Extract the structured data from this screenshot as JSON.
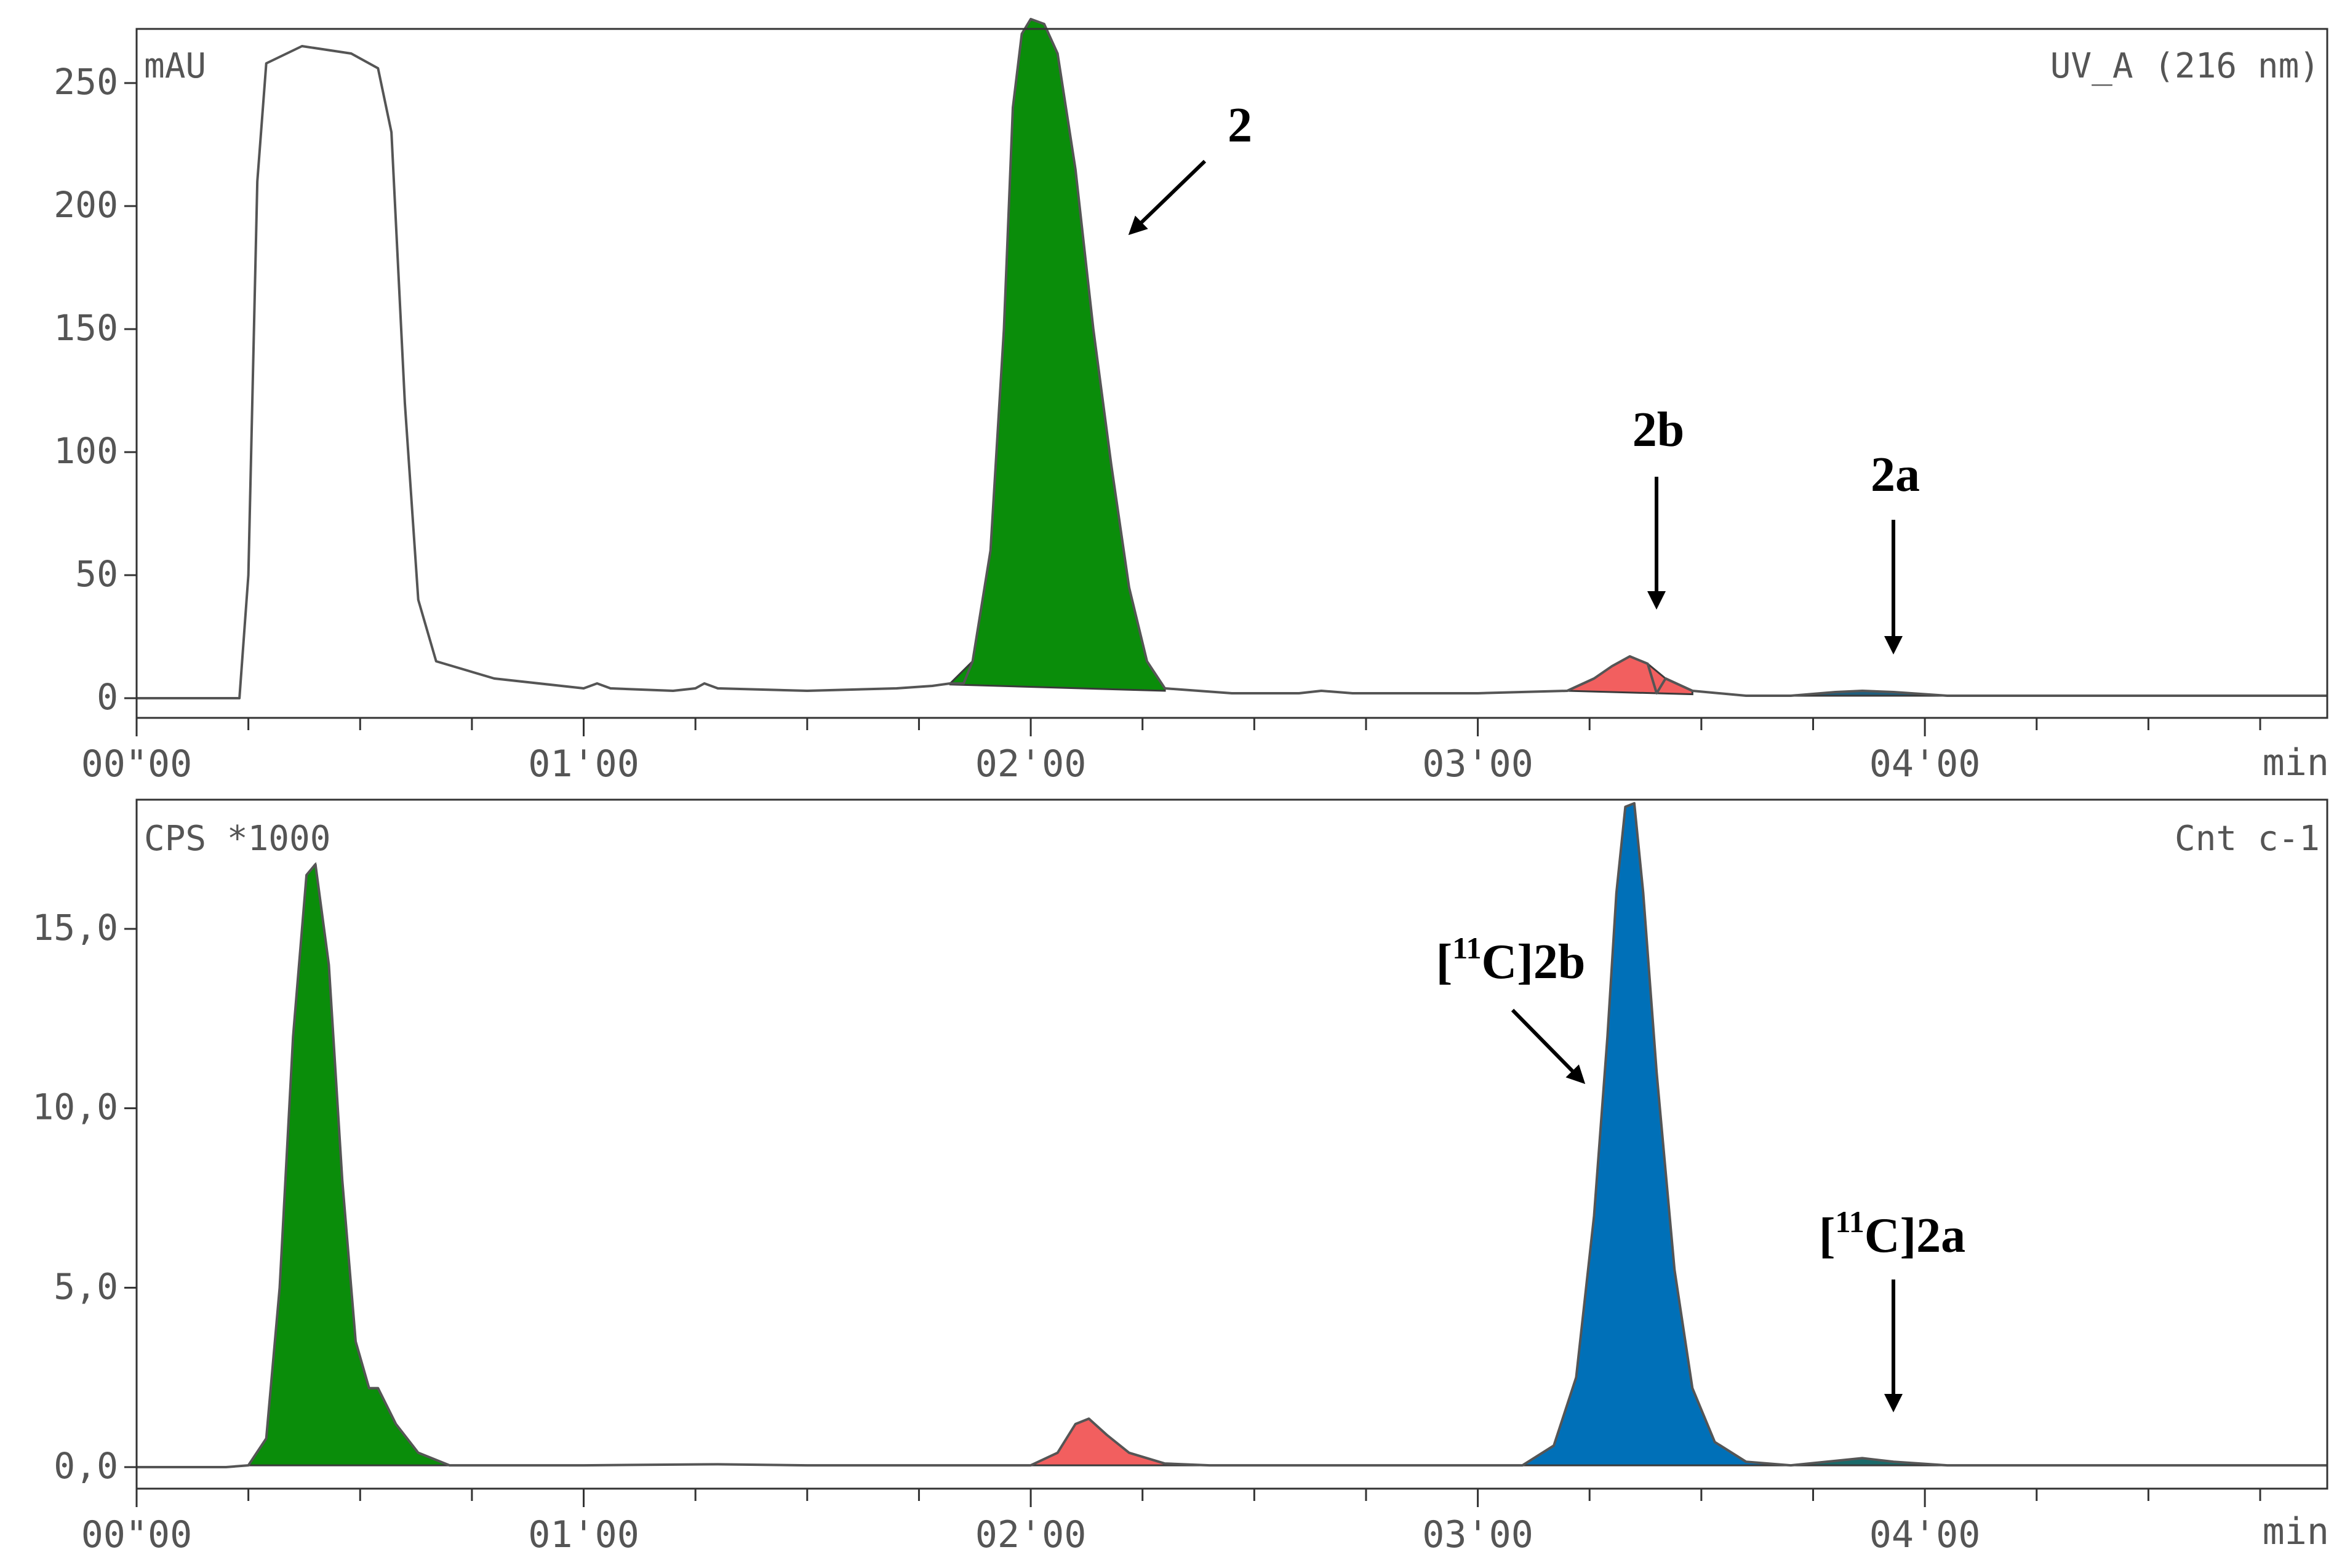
{
  "chart_data": [
    {
      "type": "area",
      "title": "",
      "unit_label": "mAU",
      "channel_label": "UV_A (216 nm)",
      "xlabel": "min",
      "xlim": [
        0,
        4.9
      ],
      "ylim": [
        -8,
        272
      ],
      "x_ticks": [
        {
          "x": 0,
          "label": "00\"00"
        },
        {
          "x": 1,
          "label": "01'00"
        },
        {
          "x": 2,
          "label": "02'00"
        },
        {
          "x": 3,
          "label": "03'00"
        },
        {
          "x": 4,
          "label": "04'00"
        }
      ],
      "y_ticks": [
        {
          "y": 0,
          "label": "0"
        },
        {
          "y": 50,
          "label": "50"
        },
        {
          "y": 100,
          "label": "100"
        },
        {
          "y": 150,
          "label": "150"
        },
        {
          "y": 200,
          "label": "200"
        },
        {
          "y": 250,
          "label": "250"
        }
      ],
      "baseline": [
        [
          0,
          0
        ],
        [
          0.22,
          0
        ],
        [
          0.23,
          0
        ],
        [
          0.25,
          50
        ],
        [
          0.27,
          210
        ],
        [
          0.29,
          258
        ],
        [
          0.37,
          265
        ],
        [
          0.48,
          262
        ],
        [
          0.54,
          256
        ],
        [
          0.57,
          230
        ],
        [
          0.6,
          120
        ],
        [
          0.63,
          40
        ],
        [
          0.67,
          15
        ],
        [
          0.8,
          8
        ],
        [
          0.95,
          5
        ],
        [
          1.0,
          4
        ],
        [
          1.03,
          6
        ],
        [
          1.06,
          4
        ],
        [
          1.2,
          3
        ],
        [
          1.25,
          4
        ],
        [
          1.27,
          6
        ],
        [
          1.3,
          4
        ],
        [
          1.5,
          3
        ],
        [
          1.7,
          4
        ],
        [
          1.78,
          5
        ],
        [
          1.85,
          6
        ],
        [
          2.0,
          5
        ],
        [
          2.3,
          3
        ],
        [
          2.45,
          2
        ],
        [
          2.6,
          2
        ],
        [
          2.65,
          3
        ],
        [
          2.72,
          2
        ],
        [
          2.9,
          2
        ],
        [
          3.0,
          2
        ],
        [
          3.2,
          3
        ],
        [
          3.4,
          2
        ],
        [
          3.6,
          1
        ],
        [
          3.8,
          1
        ],
        [
          4.2,
          1
        ],
        [
          4.9,
          1
        ]
      ],
      "series": [
        {
          "label": "2",
          "color": "#0a8d0a",
          "points": [
            [
              1.82,
              6
            ],
            [
              1.87,
              15
            ],
            [
              1.91,
              60
            ],
            [
              1.94,
              150
            ],
            [
              1.96,
              240
            ],
            [
              1.98,
              270
            ],
            [
              2.0,
              276
            ],
            [
              2.03,
              274
            ],
            [
              2.06,
              262
            ],
            [
              2.1,
              215
            ],
            [
              2.14,
              150
            ],
            [
              2.18,
              95
            ],
            [
              2.22,
              45
            ],
            [
              2.26,
              15
            ],
            [
              2.3,
              4
            ]
          ]
        },
        {
          "label": "2b",
          "color": "#f25f5f",
          "points": [
            [
              3.2,
              3
            ],
            [
              3.26,
              8
            ],
            [
              3.3,
              13
            ],
            [
              3.34,
              17
            ],
            [
              3.38,
              14
            ],
            [
              3.42,
              8
            ],
            [
              3.48,
              3
            ]
          ]
        },
        {
          "label": "2a",
          "color": "#1f5f7f",
          "points": [
            [
              3.7,
              1
            ],
            [
              3.8,
              2.5
            ],
            [
              3.86,
              3
            ],
            [
              3.93,
              2.5
            ],
            [
              4.05,
              1
            ]
          ]
        }
      ],
      "annotations": [
        {
          "text": "2",
          "target_series": "2"
        },
        {
          "text": "2b",
          "target_series": "2b"
        },
        {
          "text": "2a",
          "target_series": "2a"
        }
      ]
    },
    {
      "type": "area",
      "title": "",
      "unit_label": "CPS *1000",
      "channel_label": "Cnt c-1",
      "xlabel": "min",
      "xlim": [
        0,
        4.9
      ],
      "ylim": [
        -0.6,
        18.6
      ],
      "x_ticks": [
        {
          "x": 0,
          "label": "00\"00"
        },
        {
          "x": 1,
          "label": "01'00"
        },
        {
          "x": 2,
          "label": "02'00"
        },
        {
          "x": 3,
          "label": "03'00"
        },
        {
          "x": 4,
          "label": "04'00"
        }
      ],
      "y_ticks": [
        {
          "y": 0,
          "label": "0,0"
        },
        {
          "y": 5,
          "label": "5,0"
        },
        {
          "y": 10,
          "label": "10,0"
        },
        {
          "y": 15,
          "label": "15,0"
        }
      ],
      "baseline": [
        [
          0,
          0
        ],
        [
          0.2,
          0
        ],
        [
          0.25,
          0.05
        ],
        [
          0.7,
          0.05
        ],
        [
          1.0,
          0.05
        ],
        [
          1.3,
          0.08
        ],
        [
          1.5,
          0.05
        ],
        [
          2.0,
          0.05
        ],
        [
          2.5,
          0.05
        ],
        [
          3.0,
          0.05
        ],
        [
          3.7,
          0.05
        ],
        [
          4.2,
          0.05
        ],
        [
          4.9,
          0.05
        ]
      ],
      "series": [
        {
          "label": "",
          "color": "#0a8d0a",
          "points": [
            [
              0.25,
              0.05
            ],
            [
              0.29,
              0.8
            ],
            [
              0.32,
              5
            ],
            [
              0.35,
              12
            ],
            [
              0.38,
              16.5
            ],
            [
              0.4,
              16.8
            ],
            [
              0.43,
              14
            ],
            [
              0.46,
              8
            ],
            [
              0.49,
              3.5
            ],
            [
              0.52,
              2.2
            ],
            [
              0.54,
              2.2
            ],
            [
              0.58,
              1.2
            ],
            [
              0.63,
              0.4
            ],
            [
              0.7,
              0.05
            ]
          ]
        },
        {
          "label": "",
          "color": "#f25f5f",
          "points": [
            [
              2.0,
              0.05
            ],
            [
              2.06,
              0.4
            ],
            [
              2.1,
              1.2
            ],
            [
              2.13,
              1.35
            ],
            [
              2.17,
              0.9
            ],
            [
              2.22,
              0.4
            ],
            [
              2.3,
              0.1
            ],
            [
              2.4,
              0.05
            ]
          ]
        },
        {
          "label": "[11C]2b",
          "color": "#0070b8",
          "points": [
            [
              3.1,
              0.05
            ],
            [
              3.17,
              0.6
            ],
            [
              3.22,
              2.5
            ],
            [
              3.26,
              7
            ],
            [
              3.29,
              12
            ],
            [
              3.31,
              16
            ],
            [
              3.33,
              18.4
            ],
            [
              3.35,
              18.5
            ],
            [
              3.37,
              16
            ],
            [
              3.4,
              11
            ],
            [
              3.44,
              5.5
            ],
            [
              3.48,
              2.2
            ],
            [
              3.53,
              0.7
            ],
            [
              3.6,
              0.15
            ],
            [
              3.7,
              0.05
            ]
          ]
        },
        {
          "label": "[11C]2a",
          "color": "#1a6a6a",
          "points": [
            [
              3.7,
              0.05
            ],
            [
              3.78,
              0.15
            ],
            [
              3.86,
              0.25
            ],
            [
              3.93,
              0.15
            ],
            [
              4.05,
              0.05
            ]
          ]
        }
      ],
      "annotations": [
        {
          "prefix": "[",
          "superscript": "11",
          "text": "C]2b",
          "target_series": "[11C]2b"
        },
        {
          "prefix": "[",
          "superscript": "11",
          "text": "C]2a",
          "target_series": "[11C]2a"
        }
      ]
    }
  ]
}
